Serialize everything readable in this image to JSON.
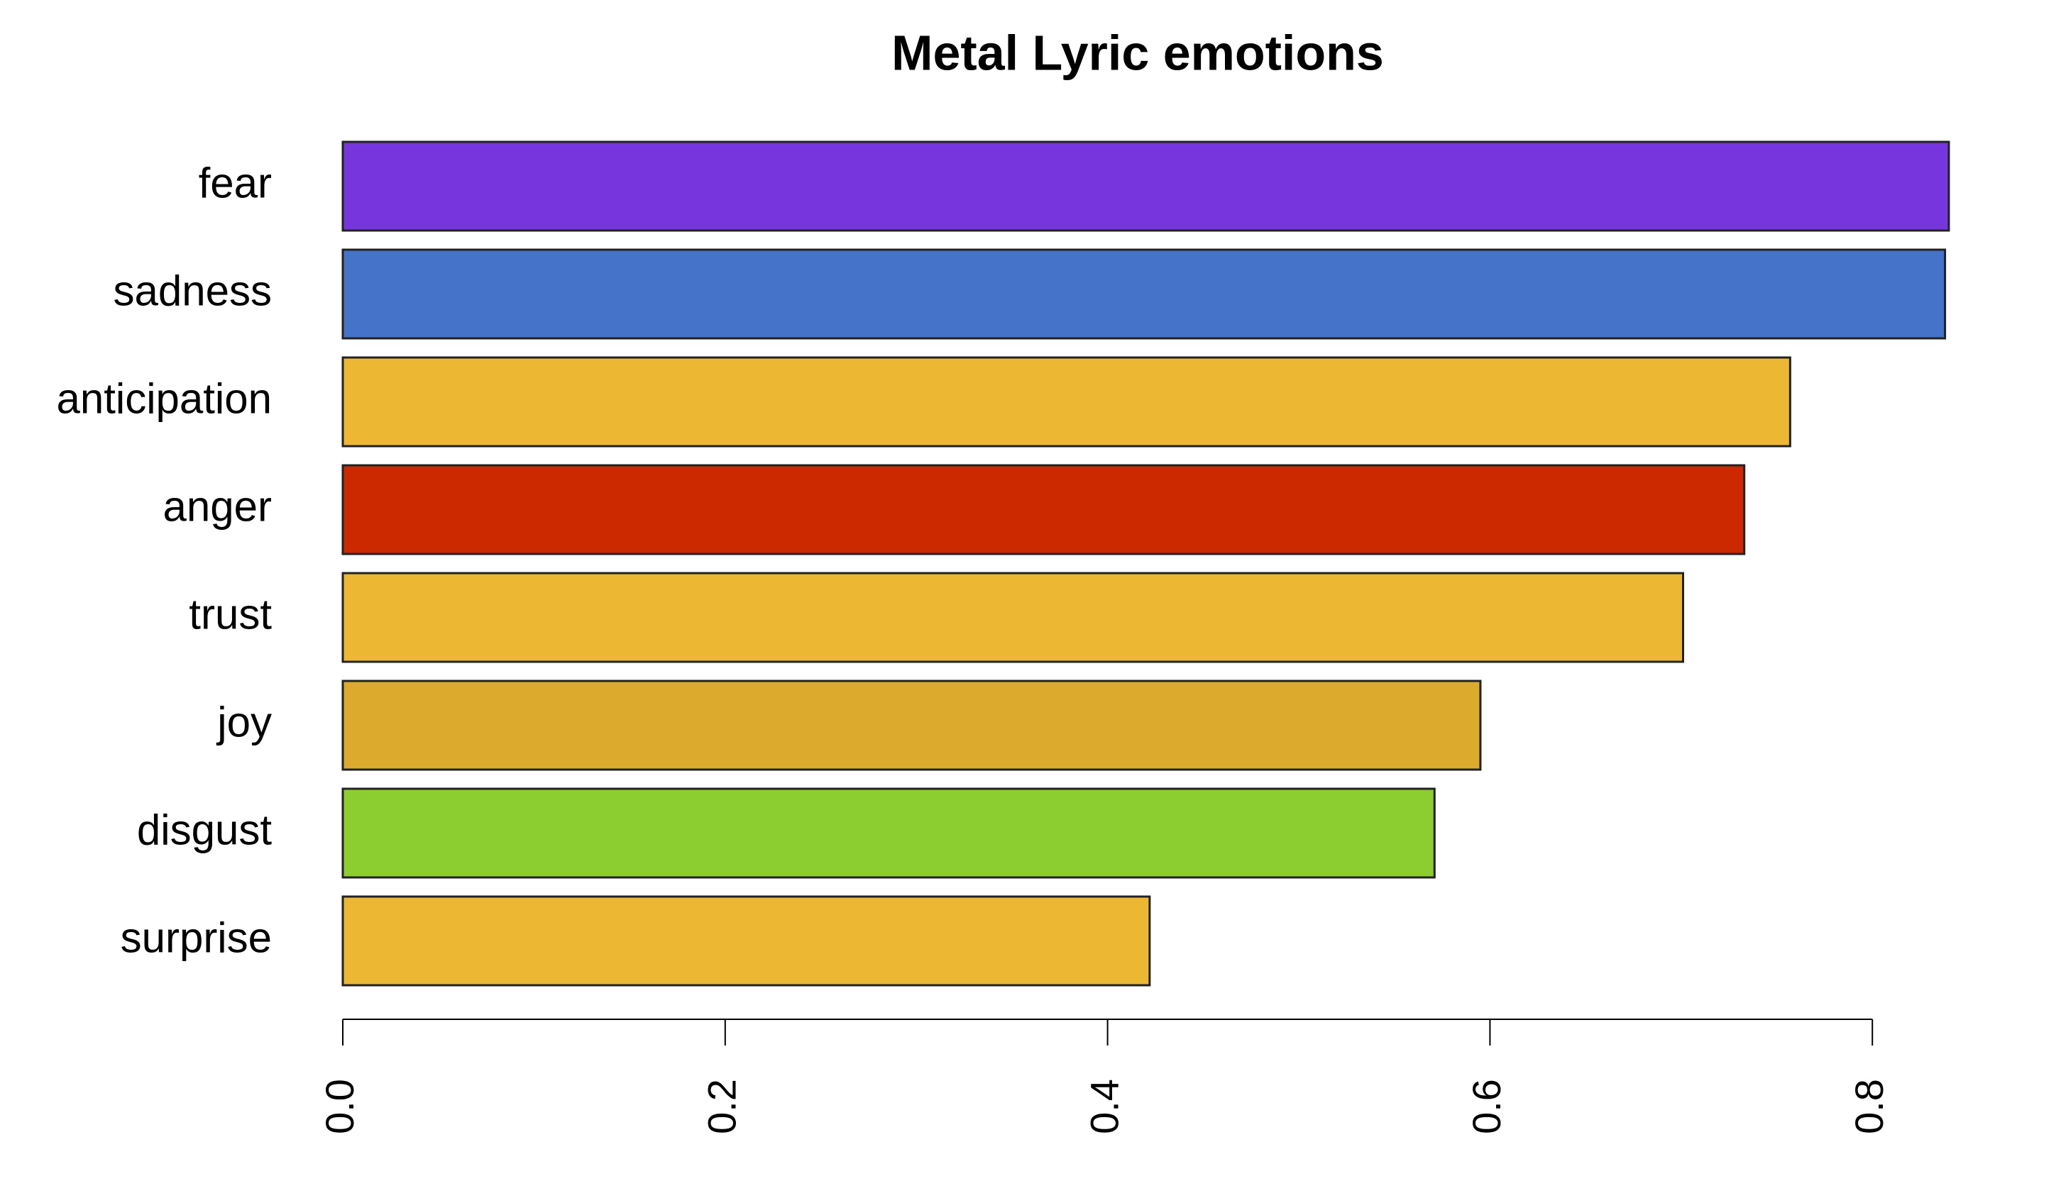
{
  "chart_data": {
    "type": "bar",
    "orientation": "horizontal",
    "title": "Metal Lyric emotions",
    "categories": [
      "fear",
      "sadness",
      "anticipation",
      "anger",
      "trust",
      "joy",
      "disgust",
      "surprise"
    ],
    "values": [
      0.84,
      0.838,
      0.757,
      0.733,
      0.701,
      0.595,
      0.571,
      0.422
    ],
    "colors": [
      "#7635dd",
      "#4473c9",
      "#ecb733",
      "#cc2900",
      "#ecb733",
      "#dcab2e",
      "#8ccd30",
      "#ecb733"
    ],
    "xlim": [
      0,
      0.86
    ],
    "xticks": [
      {
        "value": 0,
        "label": "0.0"
      },
      0.2,
      0.4,
      0.6,
      0.8
    ],
    "grid": false
  }
}
